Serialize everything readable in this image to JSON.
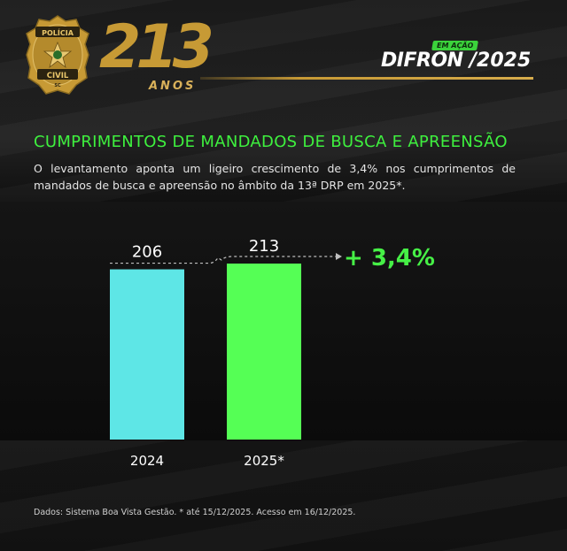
{
  "header": {
    "badge_top": "POLÍCIA",
    "badge_bottom": "CIVIL",
    "badge_state": "SC",
    "anniversary_number": "213",
    "anniversary_word": "ANOS",
    "edition_tag": "EM AÇÃO",
    "operation_name": "DIFRON",
    "operation_year": "/2025",
    "colors": {
      "gold": "#c79a35",
      "green": "#3ef03e"
    }
  },
  "title": "CUMPRIMENTOS DE MANDADOS DE BUSCA E APREENSÃO",
  "description": "O levantamento aponta um ligeiro crescimento de 3,4% nos cumprimentos de mandados de busca e apreensão no âmbito da 13ª DRP em 2025*.",
  "chart_data": {
    "type": "bar",
    "categories": [
      "2024",
      "2025*"
    ],
    "values": [
      206,
      213
    ],
    "value_labels": [
      "206",
      "213"
    ],
    "colors": [
      "#5ee6e6",
      "#55ff55"
    ],
    "annotation": "+ 3,4%",
    "ylim": [
      0,
      213
    ],
    "grid": false
  },
  "footer": "Dados: Sistema Boa Vista Gestão. * até 15/12/2025. Acesso em 16/12/2025."
}
